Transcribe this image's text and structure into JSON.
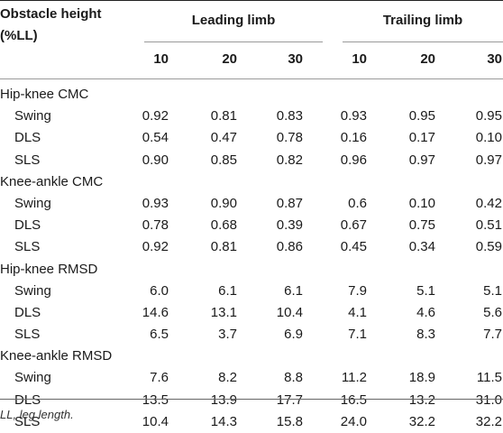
{
  "header": {
    "obstacle_line1": "Obstacle height",
    "obstacle_line2": "(%LL)",
    "leading_limb": "Leading limb",
    "trailing_limb": "Trailing limb",
    "sub_headers": [
      "10",
      "20",
      "30",
      "10",
      "20",
      "30"
    ]
  },
  "rows": [
    {
      "label": "Hip-knee CMC",
      "group": true,
      "values": []
    },
    {
      "label": "Swing",
      "values": [
        "0.92",
        "0.81",
        "0.83",
        "0.93",
        "0.95",
        "0.95"
      ]
    },
    {
      "label": "DLS",
      "values": [
        "0.54",
        "0.47",
        "0.78",
        "0.16",
        "0.17",
        "0.10"
      ]
    },
    {
      "label": "SLS",
      "values": [
        "0.90",
        "0.85",
        "0.82",
        "0.96",
        "0.97",
        "0.97"
      ]
    },
    {
      "label": "Knee-ankle CMC",
      "group": true,
      "values": []
    },
    {
      "label": "Swing",
      "values": [
        "0.93",
        "0.90",
        "0.87",
        "0.6",
        "0.10",
        "0.42"
      ]
    },
    {
      "label": "DLS",
      "values": [
        "0.78",
        "0.68",
        "0.39",
        "0.67",
        "0.75",
        "0.51"
      ]
    },
    {
      "label": "SLS",
      "values": [
        "0.92",
        "0.81",
        "0.86",
        "0.45",
        "0.34",
        "0.59"
      ]
    },
    {
      "label": "Hip-knee RMSD",
      "group": true,
      "values": []
    },
    {
      "label": "Swing",
      "values": [
        "6.0",
        "6.1",
        "6.1",
        "7.9",
        "5.1",
        "5.1"
      ]
    },
    {
      "label": "DLS",
      "values": [
        "14.6",
        "13.1",
        "10.4",
        "4.1",
        "4.6",
        "5.6"
      ]
    },
    {
      "label": "SLS",
      "values": [
        "6.5",
        "3.7",
        "6.9",
        "7.1",
        "8.3",
        "7.7"
      ]
    },
    {
      "label": "Knee-ankle RMSD",
      "group": true,
      "values": []
    },
    {
      "label": "Swing",
      "values": [
        "7.6",
        "8.2",
        "8.8",
        "11.2",
        "18.9",
        "11.5"
      ]
    },
    {
      "label": "DLS",
      "values": [
        "13.5",
        "13.9",
        "17.7",
        "16.5",
        "13.2",
        "31.0"
      ]
    },
    {
      "label": "SLS",
      "values": [
        "10.4",
        "14.3",
        "15.8",
        "24.0",
        "32.2",
        "32.2"
      ]
    }
  ],
  "footnote": "LL, leg length."
}
